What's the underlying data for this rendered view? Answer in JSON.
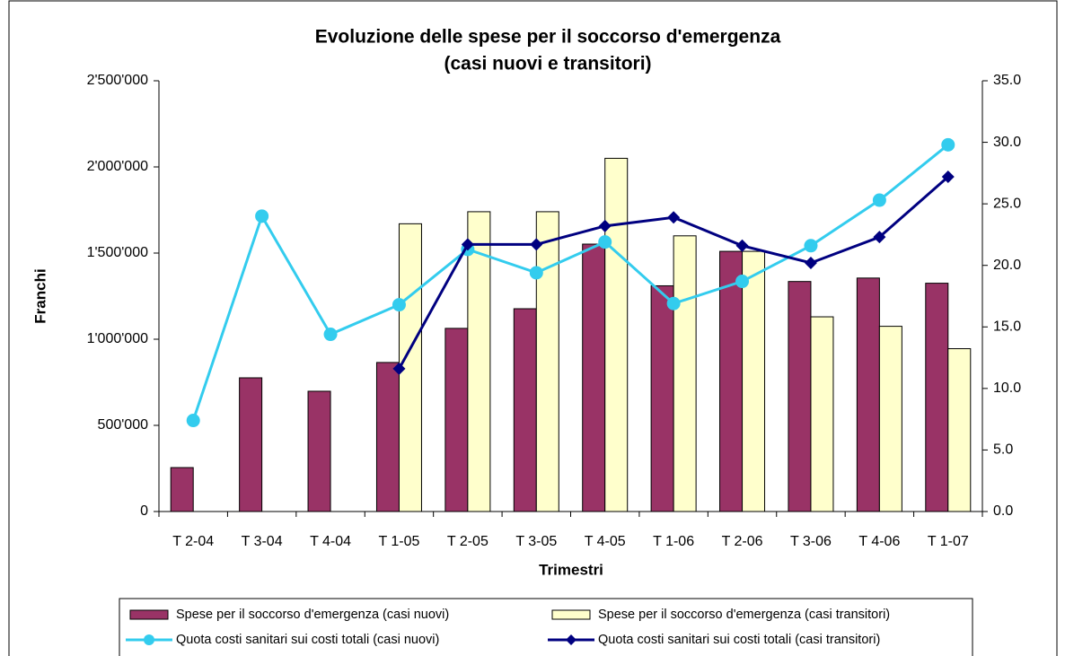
{
  "chart_data": {
    "type": "bar",
    "title": "Evoluzione delle spese per il soccorso d'emergenza",
    "subtitle": "(casi nuovi e transitori)",
    "y_label": "Franchi",
    "x_label": "Trimestri",
    "categories": [
      "T 2-04",
      "T 3-04",
      "T 4-04",
      "T 1-05",
      "T 2-05",
      "T 3-05",
      "T 4-05",
      "T 1-06",
      "T 2-06",
      "T 3-06",
      "T 4-06",
      "T 1-07"
    ],
    "ylim": [
      0,
      2500000
    ],
    "yticks": [
      0,
      {
        "value": 500000,
        "label": "500'000"
      },
      {
        "value": 1000000,
        "label": "1'000'000"
      },
      {
        "value": 1500000,
        "label": "1'500'000"
      },
      {
        "value": 2000000,
        "label": "2'000'000"
      },
      {
        "value": 2500000,
        "label": "2'500'000"
      }
    ],
    "y2lim": [
      0,
      35
    ],
    "y2ticks": [
      {
        "value": 0,
        "label": "0.0"
      },
      {
        "value": 5,
        "label": "5.0"
      },
      {
        "value": 10,
        "label": "10.0"
      },
      {
        "value": 15,
        "label": "15.0"
      },
      {
        "value": 20,
        "label": "20.0"
      },
      {
        "value": 25,
        "label": "25.0"
      },
      {
        "value": 30,
        "label": "30.0"
      },
      {
        "value": 35,
        "label": "35.0"
      }
    ],
    "legend": "bottom",
    "series": [
      {
        "name": "Spese per il soccorso d'emergenza (casi nuovi)",
        "type": "bar",
        "color": "#993366",
        "values": [
          255000,
          776000,
          698000,
          865000,
          1063000,
          1177000,
          1552000,
          1310000,
          1510000,
          1335000,
          1355000,
          1325000
        ]
      },
      {
        "name": "Spese per il soccorso d'emergenza (casi transitori)",
        "type": "bar",
        "color": "#ffffcc",
        "values": [
          null,
          null,
          null,
          1670000,
          1740000,
          1740000,
          2050000,
          1600000,
          1510000,
          1130000,
          1075000,
          945000
        ]
      },
      {
        "name": "Quota costi sanitari sui costi totali (casi nuovi)",
        "type": "line",
        "axis": "y2",
        "color": "#33ccee",
        "marker": "circle",
        "values": [
          7.4,
          24.0,
          14.4,
          16.8,
          21.3,
          19.4,
          21.9,
          16.9,
          18.7,
          21.6,
          25.3,
          29.8
        ]
      },
      {
        "name": "Quota costi sanitari sui costi totali (casi transitori)",
        "type": "line",
        "axis": "y2",
        "color": "#000080",
        "marker": "diamond",
        "values": [
          null,
          null,
          null,
          11.6,
          21.7,
          21.7,
          23.2,
          23.9,
          21.6,
          20.2,
          22.3,
          27.2
        ]
      }
    ]
  }
}
